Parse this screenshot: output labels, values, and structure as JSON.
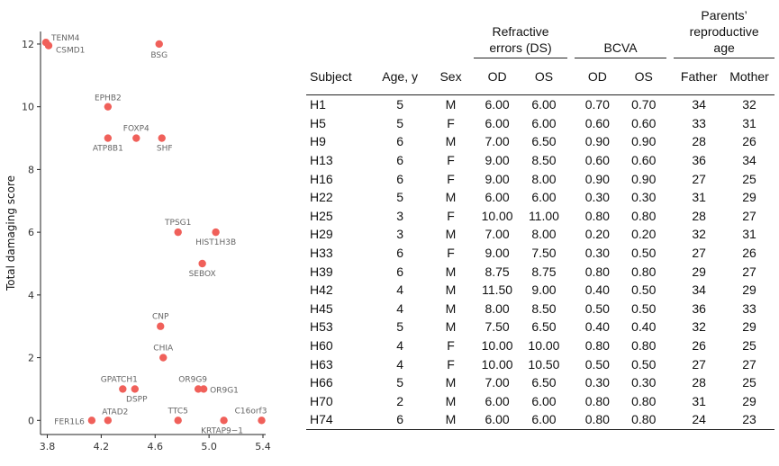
{
  "chart_data": {
    "type": "scatter",
    "ylabel": "Total damaging score",
    "xlabel": "",
    "xlim": [
      3.75,
      5.42
    ],
    "ylim": [
      -0.45,
      12.4
    ],
    "xticks": [
      "3.8",
      "4.2",
      "4.6",
      "5.0",
      "5.4"
    ],
    "yticks": [
      "0",
      "2",
      "4",
      "6",
      "8",
      "10",
      "12"
    ],
    "marker_color": "#f0605a",
    "points": [
      {
        "gene": "TENM4",
        "x": 3.79,
        "y": 12.05
      },
      {
        "gene": "CSMD1",
        "x": 3.81,
        "y": 11.95
      },
      {
        "gene": "BSG",
        "x": 4.63,
        "y": 12.0
      },
      {
        "gene": "EPHB2",
        "x": 4.25,
        "y": 10.0
      },
      {
        "gene": "FOXP4",
        "x": 4.46,
        "y": 9.0
      },
      {
        "gene": "ATP8B1",
        "x": 4.25,
        "y": 9.0
      },
      {
        "gene": "SHF",
        "x": 4.65,
        "y": 9.0
      },
      {
        "gene": "TPSG1",
        "x": 4.77,
        "y": 6.0
      },
      {
        "gene": "HIST1H3B",
        "x": 5.05,
        "y": 6.0
      },
      {
        "gene": "SEBOX",
        "x": 4.95,
        "y": 5.0
      },
      {
        "gene": "CNP",
        "x": 4.64,
        "y": 3.0
      },
      {
        "gene": "CHIA",
        "x": 4.66,
        "y": 2.0
      },
      {
        "gene": "GPATCH1",
        "x": 4.36,
        "y": 1.0
      },
      {
        "gene": "DSPP",
        "x": 4.45,
        "y": 1.0
      },
      {
        "gene": "OR9G9",
        "x": 4.92,
        "y": 1.0
      },
      {
        "gene": "OR9G1",
        "x": 4.96,
        "y": 1.0
      },
      {
        "gene": "FER1L6",
        "x": 4.13,
        "y": 0.0
      },
      {
        "gene": "ATAD2",
        "x": 4.25,
        "y": 0.0
      },
      {
        "gene": "TTC5",
        "x": 4.77,
        "y": 0.0
      },
      {
        "gene": "KRTAP9−1",
        "x": 5.11,
        "y": 0.0
      },
      {
        "gene": "C16orf3",
        "x": 5.39,
        "y": 0.0
      }
    ]
  },
  "table": {
    "group_headers": {
      "refractive": "Refractive errors (DS)",
      "bcva": "BCVA",
      "parents": "Parents’ reproductive age"
    },
    "columns": [
      "Subject",
      "Age, y",
      "Sex",
      "OD",
      "OS",
      "OD",
      "OS",
      "Father",
      "Mother"
    ],
    "rows": [
      [
        "H1",
        "5",
        "M",
        "6.00",
        "6.00",
        "0.70",
        "0.70",
        "34",
        "32"
      ],
      [
        "H5",
        "5",
        "F",
        "6.00",
        "6.00",
        "0.60",
        "0.60",
        "33",
        "31"
      ],
      [
        "H9",
        "6",
        "M",
        "7.00",
        "6.50",
        "0.90",
        "0.90",
        "28",
        "26"
      ],
      [
        "H13",
        "6",
        "F",
        "9.00",
        "8.50",
        "0.60",
        "0.60",
        "36",
        "34"
      ],
      [
        "H16",
        "6",
        "F",
        "9.00",
        "8.00",
        "0.90",
        "0.90",
        "27",
        "25"
      ],
      [
        "H22",
        "5",
        "M",
        "6.00",
        "6.00",
        "0.30",
        "0.30",
        "31",
        "29"
      ],
      [
        "H25",
        "3",
        "F",
        "10.00",
        "11.00",
        "0.80",
        "0.80",
        "28",
        "27"
      ],
      [
        "H29",
        "3",
        "M",
        "7.00",
        "8.00",
        "0.20",
        "0.20",
        "32",
        "31"
      ],
      [
        "H33",
        "6",
        "F",
        "9.00",
        "7.50",
        "0.30",
        "0.50",
        "27",
        "26"
      ],
      [
        "H39",
        "6",
        "M",
        "8.75",
        "8.75",
        "0.80",
        "0.80",
        "29",
        "27"
      ],
      [
        "H42",
        "4",
        "M",
        "11.50",
        "9.00",
        "0.40",
        "0.50",
        "34",
        "29"
      ],
      [
        "H45",
        "4",
        "M",
        "8.00",
        "8.50",
        "0.50",
        "0.50",
        "36",
        "33"
      ],
      [
        "H53",
        "5",
        "M",
        "7.50",
        "6.50",
        "0.40",
        "0.40",
        "32",
        "29"
      ],
      [
        "H60",
        "4",
        "F",
        "10.00",
        "10.00",
        "0.80",
        "0.80",
        "26",
        "25"
      ],
      [
        "H63",
        "4",
        "F",
        "10.00",
        "10.50",
        "0.50",
        "0.50",
        "27",
        "27"
      ],
      [
        "H66",
        "5",
        "M",
        "7.00",
        "6.50",
        "0.30",
        "0.30",
        "28",
        "25"
      ],
      [
        "H70",
        "2",
        "M",
        "6.00",
        "6.00",
        "0.80",
        "0.80",
        "31",
        "29"
      ],
      [
        "H74",
        "6",
        "M",
        "6.00",
        "6.00",
        "0.80",
        "0.80",
        "24",
        "23"
      ]
    ]
  }
}
